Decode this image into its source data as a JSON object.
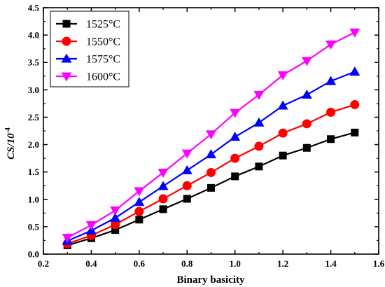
{
  "chart_data": {
    "type": "line",
    "title": "",
    "xlabel": "Binary basicity",
    "ylabel": "CS/10",
    "ylabel_exponent": "-4",
    "xlim": [
      0.2,
      1.6
    ],
    "ylim": [
      0.0,
      4.5
    ],
    "x_ticks": [
      "0.2",
      "0.4",
      "0.6",
      "0.8",
      "1.0",
      "1.2",
      "1.4",
      "1.6"
    ],
    "y_ticks": [
      "0.0",
      "0.5",
      "1.0",
      "1.5",
      "2.0",
      "2.5",
      "3.0",
      "3.5",
      "4.0",
      "4.5"
    ],
    "grid": false,
    "legend_position": "top-left",
    "x": [
      0.3,
      0.4,
      0.5,
      0.6,
      0.7,
      0.8,
      0.9,
      1.0,
      1.1,
      1.2,
      1.3,
      1.4,
      1.5
    ],
    "series": [
      {
        "name": "1525°C",
        "color": "#000000",
        "marker": "square",
        "values": [
          0.16,
          0.29,
          0.44,
          0.63,
          0.82,
          1.01,
          1.21,
          1.42,
          1.6,
          1.8,
          1.94,
          2.1,
          2.22
        ]
      },
      {
        "name": "1550°C",
        "color": "#ff0000",
        "marker": "circle",
        "values": [
          0.19,
          0.34,
          0.54,
          0.78,
          1.01,
          1.25,
          1.49,
          1.75,
          1.97,
          2.21,
          2.38,
          2.59,
          2.73
        ]
      },
      {
        "name": "1575°C",
        "color": "#0000ff",
        "marker": "triangle-up",
        "values": [
          0.24,
          0.43,
          0.66,
          0.95,
          1.24,
          1.53,
          1.82,
          2.14,
          2.4,
          2.71,
          2.91,
          3.16,
          3.33
        ]
      },
      {
        "name": "1600°C",
        "color": "#ff00ff",
        "marker": "triangle-down",
        "values": [
          0.3,
          0.53,
          0.8,
          1.15,
          1.49,
          1.84,
          2.19,
          2.58,
          2.91,
          3.27,
          3.53,
          3.83,
          4.05
        ]
      }
    ]
  }
}
